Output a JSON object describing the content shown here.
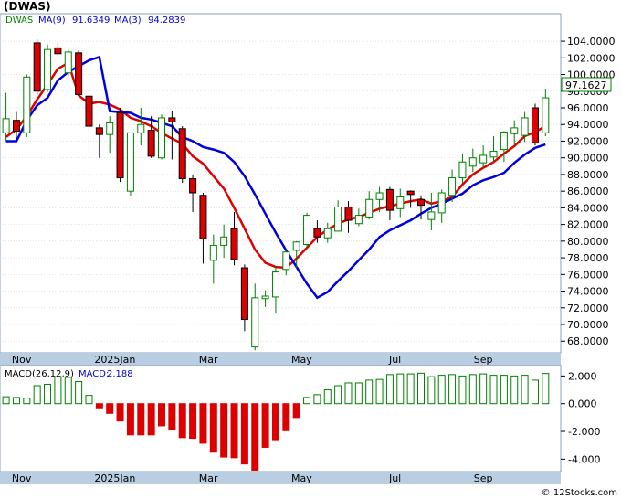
{
  "chart_data": {
    "type": "candlestick",
    "title": "(DWAS)",
    "watermark": "© 12Stocks.com",
    "price_panel": {
      "legend": [
        {
          "name": "DWAS",
          "color": "#008000"
        },
        {
          "name": "MA(9)",
          "value": "91.6349",
          "color": "#0000cc"
        },
        {
          "name": "MA(3)",
          "value": "94.2839",
          "color": "#0000cc"
        }
      ],
      "last_price_label": "97.1627",
      "y_range": [
        66.6,
        107.3
      ],
      "y_ticks": [
        {
          "value": 68,
          "label": "68.0000"
        },
        {
          "value": 70,
          "label": "70.0000"
        },
        {
          "value": 72,
          "label": "72.0000"
        },
        {
          "value": 74,
          "label": "74.0000"
        },
        {
          "value": 76,
          "label": "76.0000"
        },
        {
          "value": 78,
          "label": "78.0000"
        },
        {
          "value": 80,
          "label": "80.0000"
        },
        {
          "value": 82,
          "label": "82.0000"
        },
        {
          "value": 84,
          "label": "84.0000"
        },
        {
          "value": 86,
          "label": "86.0000"
        },
        {
          "value": 88,
          "label": "88.0000"
        },
        {
          "value": 90,
          "label": "90.0000"
        },
        {
          "value": 92,
          "label": "92.0000"
        },
        {
          "value": 94,
          "label": "94.0000"
        },
        {
          "value": 96,
          "label": "96.0000"
        },
        {
          "value": 98,
          "label": "98.0000"
        },
        {
          "value": 100,
          "label": "100.0000"
        },
        {
          "value": 102,
          "label": "102.0000"
        },
        {
          "value": 104,
          "label": "104.0000"
        }
      ],
      "candles": [
        [
          93.0,
          97.8,
          92.0,
          94.7
        ],
        [
          94.5,
          95.5,
          92.0,
          93.2
        ],
        [
          93.0,
          100.0,
          92.5,
          99.7
        ],
        [
          103.8,
          104.2,
          97.5,
          98.0
        ],
        [
          98.2,
          103.6,
          97.9,
          103.0
        ],
        [
          103.2,
          104.0,
          102.3,
          102.5
        ],
        [
          100.2,
          103.0,
          99.8,
          102.7
        ],
        [
          102.6,
          102.9,
          97.5,
          97.6
        ],
        [
          97.4,
          97.8,
          90.8,
          93.8
        ],
        [
          93.6,
          94.0,
          90.0,
          92.8
        ],
        [
          92.8,
          95.0,
          90.6,
          94.2
        ],
        [
          95.4,
          96.0,
          87.1,
          87.6
        ],
        [
          86.0,
          93.0,
          85.4,
          93.0
        ],
        [
          93.0,
          96.0,
          91.5,
          94.0
        ],
        [
          93.3,
          95.0,
          90.0,
          90.2
        ],
        [
          90.0,
          95.2,
          89.8,
          94.8
        ],
        [
          94.8,
          95.6,
          89.8,
          94.3
        ],
        [
          93.5,
          93.8,
          87.0,
          87.5
        ],
        [
          87.5,
          88.0,
          83.5,
          85.8
        ],
        [
          85.5,
          85.8,
          77.3,
          80.3
        ],
        [
          77.7,
          80.8,
          74.9,
          79.5
        ],
        [
          79.5,
          82.0,
          78.0,
          80.5
        ],
        [
          81.5,
          83.5,
          77.1,
          77.8
        ],
        [
          76.8,
          77.2,
          69.2,
          70.6
        ],
        [
          67.3,
          74.9,
          66.9,
          73.2
        ],
        [
          73.1,
          74.1,
          72.1,
          73.4
        ],
        [
          73.3,
          77.0,
          71.3,
          76.3
        ],
        [
          76.6,
          79.0,
          75.9,
          78.7
        ],
        [
          78.9,
          80.0,
          76.8,
          79.9
        ],
        [
          79.6,
          83.4,
          79.1,
          83.1
        ],
        [
          81.5,
          82.5,
          79.8,
          80.5
        ],
        [
          80.4,
          82.2,
          79.8,
          81.5
        ],
        [
          81.2,
          84.9,
          81.2,
          84.1
        ],
        [
          84.1,
          84.8,
          81.0,
          82.5
        ],
        [
          82.1,
          83.9,
          81.8,
          83.1
        ],
        [
          82.9,
          86.0,
          82.6,
          85.0
        ],
        [
          85.0,
          86.5,
          83.5,
          85.8
        ],
        [
          86.2,
          86.5,
          82.5,
          83.7
        ],
        [
          83.9,
          86.3,
          82.9,
          85.3
        ],
        [
          86.0,
          86.1,
          84.0,
          85.6
        ],
        [
          85.0,
          85.5,
          82.6,
          84.3
        ],
        [
          82.6,
          85.8,
          81.3,
          83.5
        ],
        [
          83.4,
          86.2,
          82.2,
          85.8
        ],
        [
          85.5,
          88.6,
          84.7,
          87.6
        ],
        [
          87.6,
          90.5,
          86.9,
          89.5
        ],
        [
          89.0,
          91.1,
          88.3,
          90.0
        ],
        [
          89.4,
          91.5,
          88.8,
          90.3
        ],
        [
          90.1,
          92.6,
          89.4,
          90.8
        ],
        [
          91.0,
          93.2,
          89.5,
          93.1
        ],
        [
          92.9,
          94.5,
          91.6,
          93.6
        ],
        [
          92.7,
          95.5,
          91.9,
          94.8
        ],
        [
          96.0,
          96.5,
          91.5,
          91.8
        ],
        [
          93.0,
          98.3,
          92.6,
          97.2
        ]
      ],
      "ma_red": [
        92.5,
        93.4,
        95.0,
        97.0,
        98.8,
        100.7,
        101.4,
        97.5,
        96.5,
        96.7,
        96.4,
        95.8,
        94.8,
        94.4,
        93.8,
        93.0,
        92.3,
        91.7,
        90.2,
        89.3,
        87.8,
        86.3,
        84.0,
        81.5,
        79.0,
        77.4,
        76.9,
        76.8,
        77.9,
        79.2,
        80.5,
        81.4,
        82.1,
        82.6,
        82.9,
        83.4,
        83.9,
        84.2,
        84.5,
        84.8,
        85.0,
        84.5,
        84.8,
        85.3,
        86.8,
        88.0,
        88.8,
        89.5,
        90.5,
        91.4,
        92.6,
        93.1,
        93.8
      ],
      "ma_blue": [
        92.0,
        92.0,
        94.5,
        96.3,
        97.2,
        99.3,
        100.3,
        101.0,
        101.7,
        102.1,
        95.6,
        95.5,
        95.4,
        94.8,
        94.6,
        94.2,
        93.8,
        92.5,
        92.0,
        91.3,
        91.0,
        90.6,
        89.5,
        87.8,
        85.6,
        83.3,
        81.0,
        78.9,
        76.9,
        74.9,
        73.2,
        73.9,
        75.2,
        76.4,
        77.7,
        79.0,
        80.5,
        81.3,
        81.9,
        82.5,
        83.3,
        84.0,
        84.5,
        85.1,
        85.7,
        86.7,
        87.3,
        87.7,
        88.2,
        89.4,
        90.4,
        91.2,
        91.6
      ]
    },
    "macd_panel": {
      "legend": [
        {
          "name": "MACD(26,12,9)",
          "color": "#000000"
        },
        {
          "name": "MACD:",
          "value": "2.188",
          "color": "#0000cc"
        }
      ],
      "y_range": [
        -4.9,
        2.75
      ],
      "y_ticks": [
        {
          "value": 2,
          "label": "2.000"
        },
        {
          "value": 0,
          "label": "0.000"
        },
        {
          "value": -2,
          "label": "-2.000"
        },
        {
          "value": -4,
          "label": "-4.000"
        }
      ],
      "values": [
        0.5,
        0.45,
        0.4,
        1.3,
        1.4,
        1.95,
        1.9,
        1.6,
        0.6,
        -0.3,
        -0.7,
        -1.25,
        -2.25,
        -2.25,
        -2.25,
        -1.6,
        -1.9,
        -2.45,
        -2.5,
        -2.85,
        -3.5,
        -3.85,
        -3.9,
        -4.35,
        -4.8,
        -3.15,
        -2.6,
        -1.95,
        -1.0,
        0.45,
        0.65,
        1.0,
        1.3,
        1.5,
        1.5,
        1.7,
        1.75,
        2.1,
        2.15,
        2.15,
        2.2,
        1.95,
        2.05,
        2.1,
        2.0,
        2.1,
        2.15,
        2.05,
        2.05,
        2.0,
        2.05,
        1.7,
        2.18
      ]
    },
    "x_axis": {
      "labels": [
        {
          "label": "Nov",
          "index": 1.5
        },
        {
          "label": "2025Jan",
          "index": 10.5
        },
        {
          "label": "Mar",
          "index": 19.5
        },
        {
          "label": "May",
          "index": 28.5
        },
        {
          "label": "Jul",
          "index": 37.5
        },
        {
          "label": "Sep",
          "index": 46.0
        }
      ]
    },
    "colors": {
      "up_body": "#ffffff",
      "up_border": "#008000",
      "down_body": "#dd0000",
      "down_border": "#000000",
      "ma_red": "#e00000",
      "ma_blue": "#0000dd",
      "panel_border": "#8f9fb6",
      "axis_strip": "#b9cde3",
      "grid": "#c9d3df",
      "macd_pos_border": "#008000",
      "macd_neg_fill": "#dd0000"
    }
  }
}
